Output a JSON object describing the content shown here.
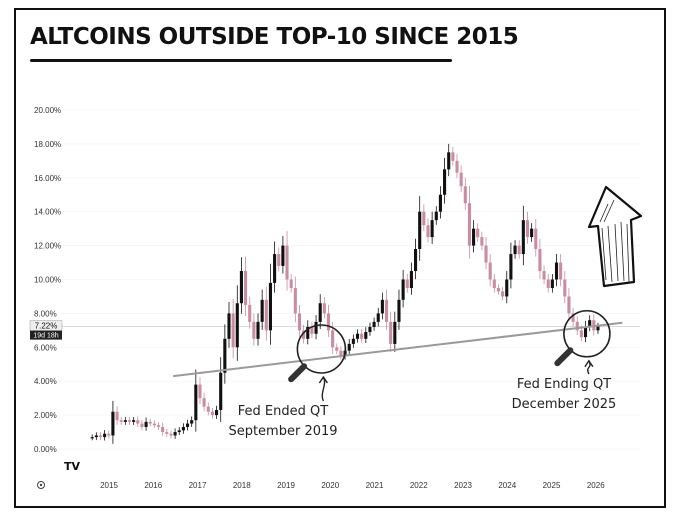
{
  "chart_data": {
    "type": "candlestick",
    "title": "ALTCOINS OUTSIDE TOP-10 SINCE 2015",
    "ylim": [
      0,
      21
    ],
    "xlim": [
      2014.2,
      2026.55
    ],
    "y_ticks": [
      "0.00%",
      "2.00%",
      "4.00%",
      "6.00%",
      "8.00%",
      "10.00%",
      "12.00%",
      "14.00%",
      "16.00%",
      "18.00%",
      "20.00%"
    ],
    "y_tick_values": [
      0,
      2,
      4,
      6,
      8,
      10,
      12,
      14,
      16,
      18,
      20
    ],
    "x_ticks": [
      "2015",
      "2016",
      "2017",
      "2018",
      "2019",
      "2020",
      "2021",
      "2022",
      "2023",
      "2024",
      "2025",
      "2026"
    ],
    "x_tick_values": [
      2015,
      2016,
      2017,
      2018,
      2019,
      2020,
      2021,
      2022,
      2023,
      2024,
      2025,
      2026
    ],
    "current_value_label": "7.22%",
    "current_value": 7.22,
    "countdown_label": "19d 18h",
    "series": [
      {
        "color_up": "#111111",
        "color_down": "#c98ca3",
        "close": [
          0.7,
          0.8,
          0.7,
          0.9,
          0.8,
          2.2,
          1.7,
          1.6,
          1.7,
          1.6,
          1.7,
          1.5,
          1.3,
          1.6,
          1.5,
          1.4,
          1.3,
          1.0,
          0.9,
          0.8,
          1.0,
          1.1,
          1.3,
          1.5,
          1.7,
          3.8,
          3.0,
          2.5,
          2.2,
          2.0,
          2.3,
          4.5,
          6.5,
          8.0,
          6.0,
          8.6,
          10.5,
          8.5,
          7.5,
          6.5,
          7.5,
          8.8,
          7.0,
          9.8,
          11.5,
          10.8,
          12.0,
          10.0,
          9.5,
          8.0,
          7.0,
          6.5,
          7.2,
          6.8,
          7.5,
          8.6,
          8.0,
          7.0,
          6.0,
          5.8,
          5.5,
          5.8,
          6.2,
          6.5,
          6.8,
          6.5,
          6.9,
          7.2,
          7.5,
          8.0,
          8.8,
          7.5,
          6.2,
          7.5,
          8.8,
          10.0,
          9.5,
          10.5,
          11.8,
          14.0,
          13.2,
          12.5,
          13.5,
          14.0,
          15.0,
          16.5,
          17.5,
          17.0,
          16.3,
          15.5,
          14.5,
          12.0,
          13.0,
          12.5,
          12.0,
          11.0,
          10.0,
          9.5,
          9.3,
          9.0,
          10.0,
          11.5,
          12.0,
          11.5,
          13.5,
          12.5,
          13.0,
          11.8,
          10.5,
          10.0,
          9.5,
          10.0,
          11.0,
          10.0,
          9.0,
          8.0,
          7.5,
          7.0,
          6.6,
          7.2,
          7.6,
          7.0,
          7.22
        ]
      }
    ],
    "trendline": {
      "x": [
        2016.45,
        2026.6
      ],
      "y": [
        4.3,
        7.45
      ]
    },
    "annotations": [
      {
        "text_lines": [
          "Fed Ended QT",
          "September 2019"
        ],
        "circle_at": {
          "x": 2019.8,
          "y": 5.9
        }
      },
      {
        "text_lines": [
          "Fed Ending QT",
          "December 2025"
        ],
        "circle_at": {
          "x": 2025.8,
          "y": 6.8
        }
      }
    ],
    "arrow": "up",
    "logo": "TV"
  }
}
